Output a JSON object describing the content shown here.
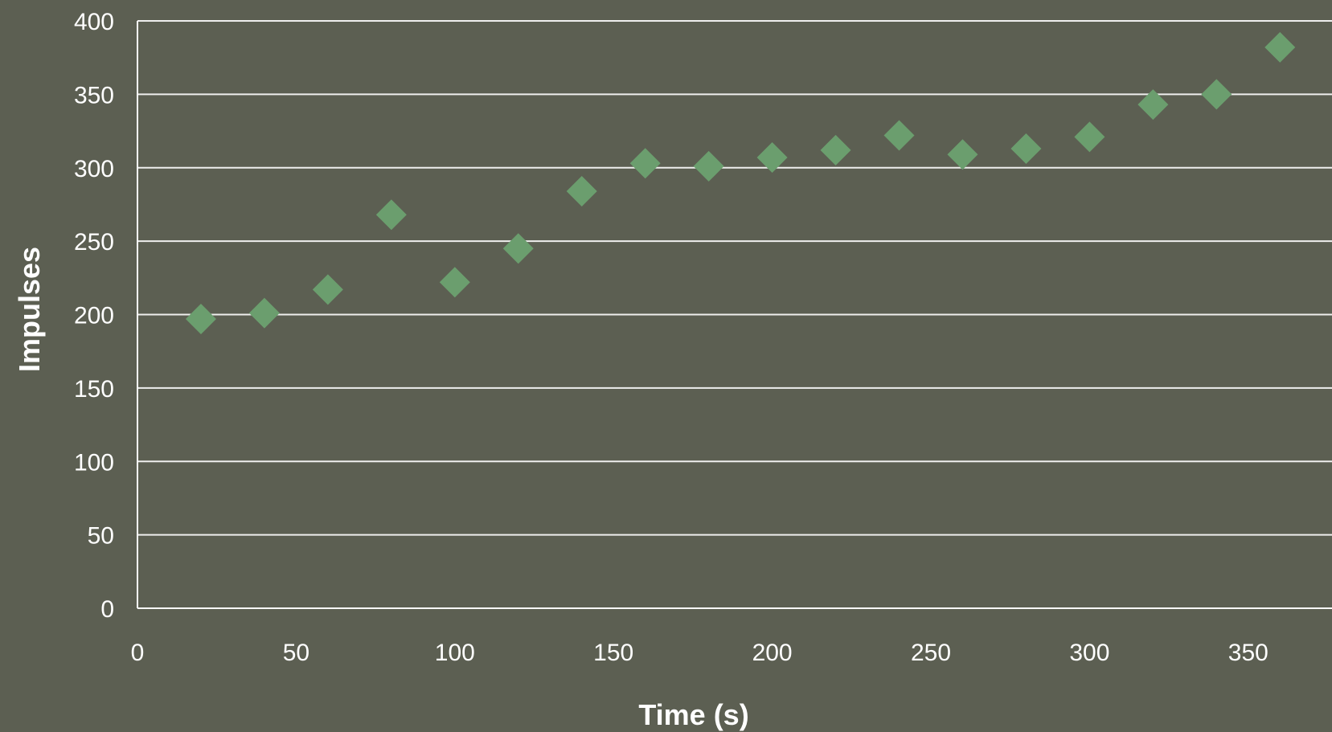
{
  "chart_data": {
    "type": "scatter",
    "title": "",
    "xlabel": "Time (s)",
    "ylabel": "Impulses",
    "xlim": [
      0,
      370
    ],
    "ylim": [
      0,
      400
    ],
    "x_ticks": [
      0,
      50,
      100,
      150,
      200,
      250,
      300,
      350
    ],
    "y_ticks": [
      0,
      50,
      100,
      150,
      200,
      250,
      300,
      350,
      400
    ],
    "grid": "horizontal",
    "legend": "none",
    "marker": "diamond",
    "colors": {
      "background": "#5c5f52",
      "marker": "#6b9e6e",
      "gridline": "#ffffff",
      "text": "#ffffff"
    },
    "series": [
      {
        "x": [
          20,
          40,
          60,
          80,
          100,
          120,
          140,
          160,
          180,
          200,
          220,
          240,
          260,
          280,
          300,
          320,
          340,
          360
        ],
        "y": [
          197,
          201,
          217,
          268,
          222,
          245,
          284,
          303,
          301,
          307,
          312,
          322,
          309,
          313,
          321,
          343,
          350,
          382
        ]
      }
    ]
  }
}
